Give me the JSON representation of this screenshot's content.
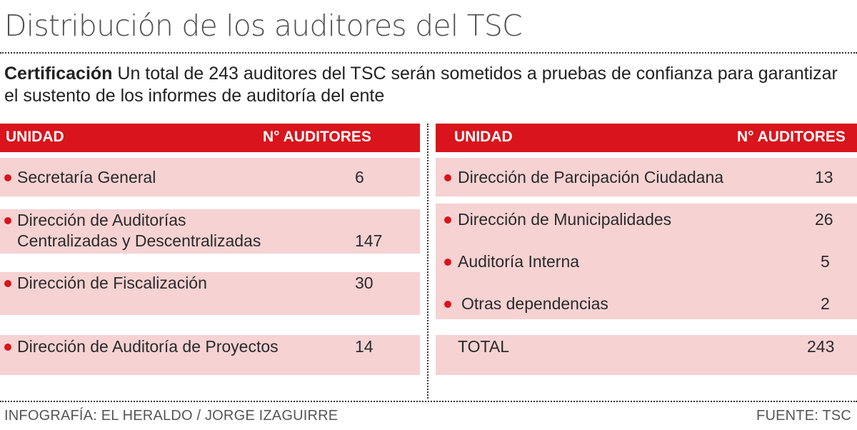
{
  "title": "Distribución de los auditores del TSC",
  "intro": {
    "lead": "Certificación",
    "text": "Un total de 243 auditores del TSC serán sometidos a pruebas de confianza para garantizar el sustento de los informes de auditoría del ente"
  },
  "table_left": {
    "headers": {
      "unit": "UNIDAD",
      "count": "N° AUDITORES"
    },
    "rows": [
      {
        "label": "Secretaría General",
        "value": "6"
      },
      {
        "label_line1": "Dirección de Auditorías",
        "label_line2": "Centralizadas y Descentralizadas",
        "value": "147"
      },
      {
        "label": "Dirección de Fiscalización",
        "value": "30"
      },
      {
        "label": "Dirección de Auditoría de Proyectos",
        "value": "14"
      }
    ]
  },
  "table_right": {
    "headers": {
      "unit": "UNIDAD",
      "count": "N° AUDITORES"
    },
    "rows": [
      {
        "label": "Dirección de Parcipación Ciudadana",
        "value": "13"
      },
      {
        "label": "Dirección de Municipalidades",
        "value": "26"
      },
      {
        "label": "Auditoría Interna",
        "value": "5"
      },
      {
        "label": "Otras dependencias",
        "value": "2"
      }
    ],
    "total": {
      "label": "TOTAL",
      "value": "243"
    }
  },
  "footer": {
    "credit": "INFOGRAFÍA: EL HERALDO / JORGE IZAGUIRRE",
    "source": "FUENTE: TSC"
  },
  "colors": {
    "accent": "#d9141c",
    "band": "#f6d2d3"
  }
}
